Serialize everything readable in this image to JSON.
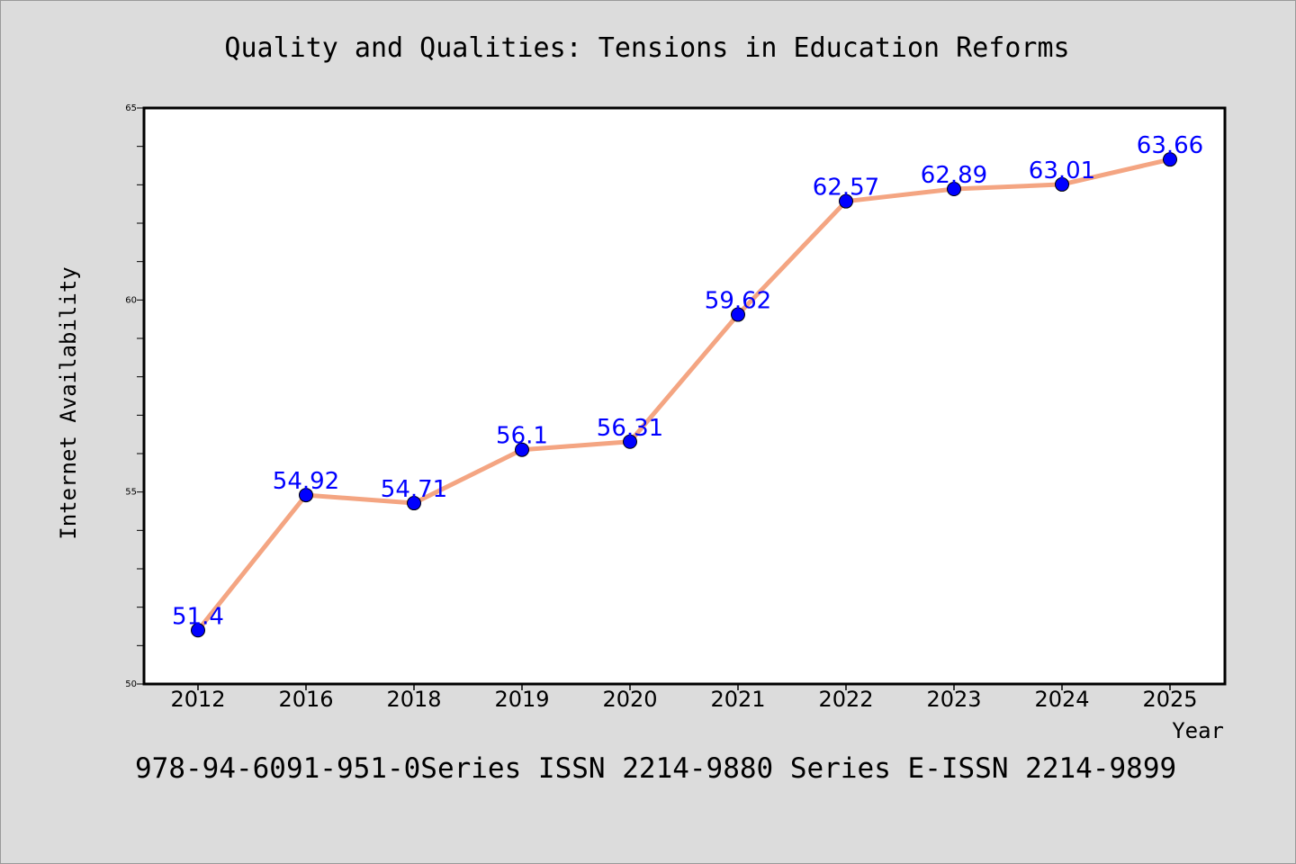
{
  "colors": {
    "background": "#dcdcdc",
    "plot_background": "#ffffff",
    "line": "#f4a582",
    "marker": "#0000ff",
    "data_label": "#0000ff",
    "axis": "#000000"
  },
  "footer": {
    "text": "978-94-6091-951-0Series ISSN 2214-9880 Series E-ISSN 2214-9899"
  },
  "chart_data": {
    "type": "line",
    "title": "Quality and Qualities: Tensions in Education Reforms",
    "xlabel": "Year",
    "ylabel": "Internet Availability",
    "categories": [
      "2012",
      "2016",
      "2018",
      "2019",
      "2020",
      "2021",
      "2022",
      "2023",
      "2024",
      "2025"
    ],
    "series": [
      {
        "values": [
          51.4,
          54.92,
          54.71,
          56.1,
          56.31,
          59.62,
          62.57,
          62.89,
          63.01,
          63.66
        ],
        "labels": [
          "51.4",
          "54.92",
          "54.71",
          "56.1",
          "56.31",
          "59.62",
          "62.57",
          "62.89",
          "63.01",
          "63.66"
        ]
      }
    ],
    "ylim": [
      50,
      65
    ],
    "yticks": [
      "50",
      "55",
      "60",
      "65"
    ],
    "grid": false,
    "legend": "none"
  }
}
